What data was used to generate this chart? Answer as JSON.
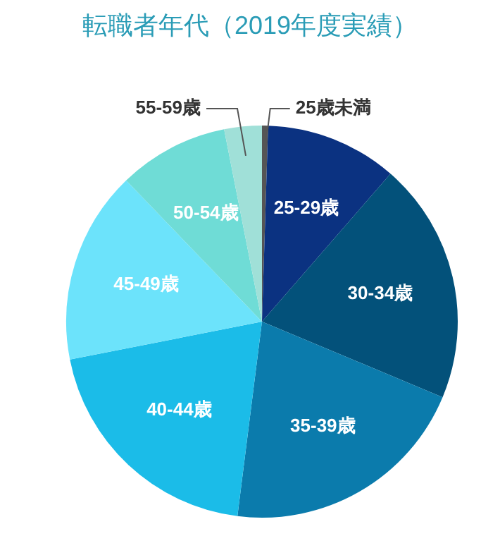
{
  "chart_data": {
    "type": "pie",
    "title": "転職者年代（2019年度実績）",
    "categories": [
      "25歳未満",
      "25-29歳",
      "30-34歳",
      "35-39歳",
      "40-44歳",
      "45-49歳",
      "50-54歳",
      "55-59歳"
    ],
    "values": [
      0.5,
      10.9,
      19.9,
      20.7,
      19.9,
      15.9,
      9.1,
      3.1
    ],
    "colors": [
      "#555555",
      "#0b3281",
      "#03517a",
      "#0b7bac",
      "#1bbce8",
      "#6ce3fb",
      "#6fdcd6",
      "#a0e0d8"
    ],
    "legend": false
  }
}
